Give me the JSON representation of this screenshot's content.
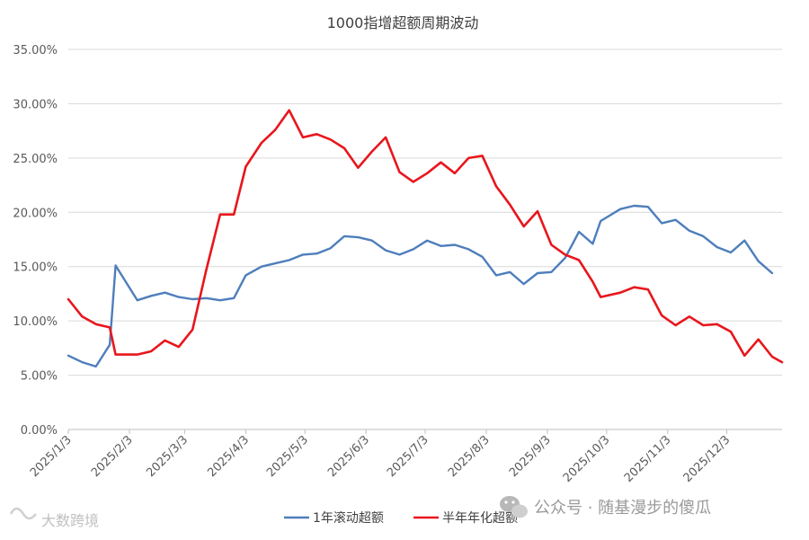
{
  "chart_data": {
    "type": "line",
    "title": "1000指增超额周期波动",
    "ylim": [
      0,
      35
    ],
    "yticks": [
      0,
      5,
      10,
      15,
      20,
      25,
      30,
      35
    ],
    "ytick_labels": [
      "0.00%",
      "5.00%",
      "10.00%",
      "15.00%",
      "20.00%",
      "25.00%",
      "30.00%",
      "35.00%"
    ],
    "xlim": [
      "2025-01-03",
      "2025-12-31"
    ],
    "xticks": [
      "2025-01-03",
      "2025-02-03",
      "2025-03-03",
      "2025-04-03",
      "2025-05-03",
      "2025-06-03",
      "2025-07-03",
      "2025-08-03",
      "2025-09-03",
      "2025-10-03",
      "2025-11-03",
      "2025-12-03"
    ],
    "xtick_labels": [
      "2025/1/3",
      "2025/2/3",
      "2025/3/3",
      "2025/4/3",
      "2025/5/3",
      "2025/6/3",
      "2025/7/3",
      "2025/8/3",
      "2025/9/3",
      "2025/10/3",
      "2025/11/3",
      "2025/12/3"
    ],
    "grid": true,
    "legend_position": "bottom",
    "series": [
      {
        "name": "1年滚动超额",
        "color": "#4e7ebc",
        "points": [
          [
            "2025-01-03",
            6.8
          ],
          [
            "2025-01-10",
            6.2
          ],
          [
            "2025-01-17",
            5.8
          ],
          [
            "2025-01-24",
            7.8
          ],
          [
            "2025-01-27",
            15.1
          ],
          [
            "2025-02-07",
            11.9
          ],
          [
            "2025-02-14",
            12.3
          ],
          [
            "2025-02-21",
            12.6
          ],
          [
            "2025-02-28",
            12.2
          ],
          [
            "2025-03-07",
            12.0
          ],
          [
            "2025-03-14",
            12.1
          ],
          [
            "2025-03-21",
            11.9
          ],
          [
            "2025-03-28",
            12.1
          ],
          [
            "2025-04-03",
            14.2
          ],
          [
            "2025-04-11",
            15.0
          ],
          [
            "2025-04-18",
            15.3
          ],
          [
            "2025-04-25",
            15.6
          ],
          [
            "2025-05-02",
            16.1
          ],
          [
            "2025-05-09",
            16.2
          ],
          [
            "2025-05-16",
            16.7
          ],
          [
            "2025-05-23",
            17.8
          ],
          [
            "2025-05-30",
            17.7
          ],
          [
            "2025-06-06",
            17.4
          ],
          [
            "2025-06-13",
            16.5
          ],
          [
            "2025-06-20",
            16.1
          ],
          [
            "2025-06-27",
            16.6
          ],
          [
            "2025-07-04",
            17.4
          ],
          [
            "2025-07-11",
            16.9
          ],
          [
            "2025-07-18",
            17.0
          ],
          [
            "2025-07-25",
            16.6
          ],
          [
            "2025-08-01",
            15.9
          ],
          [
            "2025-08-08",
            14.2
          ],
          [
            "2025-08-15",
            14.5
          ],
          [
            "2025-08-22",
            13.4
          ],
          [
            "2025-08-29",
            14.4
          ],
          [
            "2025-09-05",
            14.5
          ],
          [
            "2025-09-12",
            15.8
          ],
          [
            "2025-09-19",
            18.2
          ],
          [
            "2025-09-26",
            17.1
          ],
          [
            "2025-09-30",
            19.2
          ],
          [
            "2025-10-10",
            20.3
          ],
          [
            "2025-10-17",
            20.6
          ],
          [
            "2025-10-24",
            20.5
          ],
          [
            "2025-10-31",
            19.0
          ],
          [
            "2025-11-07",
            19.3
          ],
          [
            "2025-11-14",
            18.3
          ],
          [
            "2025-11-21",
            17.8
          ],
          [
            "2025-11-28",
            16.8
          ],
          [
            "2025-12-05",
            16.3
          ],
          [
            "2025-12-12",
            17.4
          ],
          [
            "2025-12-19",
            15.5
          ],
          [
            "2025-12-26",
            14.4
          ]
        ]
      },
      {
        "name": "半年年化超额",
        "color": "#e8161c",
        "points": [
          [
            "2025-01-03",
            12.0
          ],
          [
            "2025-01-10",
            10.4
          ],
          [
            "2025-01-17",
            9.7
          ],
          [
            "2025-01-24",
            9.4
          ],
          [
            "2025-01-27",
            6.9
          ],
          [
            "2025-02-07",
            6.9
          ],
          [
            "2025-02-14",
            7.2
          ],
          [
            "2025-02-21",
            8.2
          ],
          [
            "2025-02-28",
            7.6
          ],
          [
            "2025-03-07",
            9.2
          ],
          [
            "2025-03-14",
            14.7
          ],
          [
            "2025-03-21",
            19.8
          ],
          [
            "2025-03-28",
            19.8
          ],
          [
            "2025-04-03",
            24.2
          ],
          [
            "2025-04-11",
            26.4
          ],
          [
            "2025-04-18",
            27.6
          ],
          [
            "2025-04-25",
            29.4
          ],
          [
            "2025-05-02",
            26.9
          ],
          [
            "2025-05-09",
            27.2
          ],
          [
            "2025-05-16",
            26.7
          ],
          [
            "2025-05-23",
            25.9
          ],
          [
            "2025-05-30",
            24.1
          ],
          [
            "2025-06-06",
            25.6
          ],
          [
            "2025-06-13",
            26.9
          ],
          [
            "2025-06-20",
            23.7
          ],
          [
            "2025-06-27",
            22.8
          ],
          [
            "2025-07-04",
            23.6
          ],
          [
            "2025-07-11",
            24.6
          ],
          [
            "2025-07-18",
            23.6
          ],
          [
            "2025-07-25",
            25.0
          ],
          [
            "2025-08-01",
            25.2
          ],
          [
            "2025-08-08",
            22.4
          ],
          [
            "2025-08-15",
            20.7
          ],
          [
            "2025-08-22",
            18.7
          ],
          [
            "2025-08-29",
            20.1
          ],
          [
            "2025-09-05",
            17.0
          ],
          [
            "2025-09-12",
            16.1
          ],
          [
            "2025-09-19",
            15.6
          ],
          [
            "2025-09-26",
            13.6
          ],
          [
            "2025-09-30",
            12.2
          ],
          [
            "2025-10-10",
            12.6
          ],
          [
            "2025-10-17",
            13.1
          ],
          [
            "2025-10-24",
            12.9
          ],
          [
            "2025-10-31",
            10.5
          ],
          [
            "2025-11-07",
            9.6
          ],
          [
            "2025-11-14",
            10.4
          ],
          [
            "2025-11-21",
            9.6
          ],
          [
            "2025-11-28",
            9.7
          ],
          [
            "2025-12-05",
            9.0
          ],
          [
            "2025-12-12",
            6.8
          ],
          [
            "2025-12-19",
            8.3
          ],
          [
            "2025-12-26",
            6.7
          ],
          [
            "2025-12-31",
            6.2
          ]
        ]
      }
    ]
  },
  "watermarks": {
    "wechat_text": "公众号 · 随基漫步的傻瓜",
    "corner_text": "大数跨境"
  }
}
